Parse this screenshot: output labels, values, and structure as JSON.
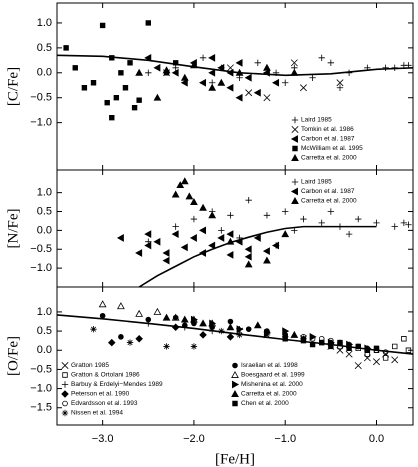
{
  "chart_data": [
    {
      "type": "scatter",
      "ylabel": "[C/Fe]",
      "color": "#000000",
      "legend": "lower right",
      "xlim": [
        -3.5,
        0.4
      ],
      "ylim": [
        -1.95,
        1.4
      ],
      "yticks": [
        {
          "value": 1,
          "label": "1.0"
        },
        {
          "value": 0.5,
          "label": "0.5"
        },
        {
          "value": 0,
          "label": "0.0"
        },
        {
          "value": -0.5,
          "label": "−0.5"
        },
        {
          "value": -1,
          "label": "−1.0"
        }
      ],
      "series": [
        {
          "name": "Laird 1985",
          "marker": "plus",
          "x": [
            -2.2,
            -1.9,
            -1.7,
            -1.5,
            -1.3,
            -1.1,
            -0.9,
            -0.7,
            -0.5,
            -0.3,
            -0.1,
            0.1,
            0.3,
            -1.0,
            -0.6,
            -1.8,
            -2.5,
            -0.4,
            0.2,
            0.35
          ],
          "values": [
            0.1,
            0.3,
            0.1,
            -0.1,
            0.2,
            0.0,
            0.1,
            -0.1,
            0.2,
            0.0,
            0.1,
            0.1,
            0.15,
            -0.2,
            0.3,
            -0.2,
            0.0,
            -0.3,
            0.1,
            0.15
          ]
        },
        {
          "name": "Tomkin et al. 1986",
          "marker": "cross",
          "x": [
            -2.3,
            -1.4,
            -1.2,
            -0.8,
            -0.4,
            -1.6,
            -0.9
          ],
          "values": [
            0.0,
            -0.4,
            -0.5,
            -0.3,
            -0.2,
            0.1,
            0.2
          ]
        },
        {
          "name": "Carbon et al. 1987",
          "marker": "tri-left",
          "x": [
            -2.5,
            -2.4,
            -2.2,
            -2.0,
            -1.9,
            -1.8,
            -1.7,
            -1.6,
            -1.5,
            -1.4,
            -1.3,
            -1.2,
            -1.1,
            -2.1,
            -1.8,
            -1.6,
            -1.5
          ],
          "values": [
            0.3,
            0.1,
            0.0,
            0.2,
            -0.2,
            0.0,
            0.1,
            -0.3,
            0.2,
            -0.1,
            -0.4,
            0.0,
            -0.2,
            -0.2,
            0.3,
            0.0,
            -0.5
          ]
        },
        {
          "name": "McWilliam et al. 1995",
          "marker": "square",
          "x": [
            -3.4,
            -3.3,
            -3.1,
            -3.0,
            -2.95,
            -2.9,
            -2.85,
            -2.8,
            -2.75,
            -2.7,
            -2.6,
            -2.5,
            -2.3,
            -2.2,
            -3.2,
            -2.9,
            -2.65
          ],
          "values": [
            0.5,
            0.1,
            -0.2,
            0.95,
            -0.6,
            0.3,
            -0.5,
            0.0,
            -0.3,
            0.2,
            -0.55,
            1.0,
            0.0,
            0.2,
            -0.3,
            -0.9,
            -0.7
          ]
        },
        {
          "name": "Carretta et al. 2000",
          "marker": "tri-up",
          "x": [
            -2.6,
            -2.4,
            -2.1,
            -2.0,
            -1.8,
            -1.5,
            -1.2,
            -0.9,
            -2.3,
            -1.7
          ],
          "values": [
            0.0,
            -0.5,
            -0.1,
            0.15,
            -0.3,
            0.0,
            0.1,
            0.0,
            0.05,
            -0.2
          ]
        }
      ],
      "curve": {
        "x": [
          -3.5,
          -3.0,
          -2.5,
          -2.0,
          -1.5,
          -1.0,
          -0.5,
          0.0,
          0.4
        ],
        "y": [
          0.35,
          0.33,
          0.25,
          0.12,
          0.0,
          -0.05,
          -0.02,
          0.07,
          0.1
        ]
      }
    },
    {
      "type": "scatter",
      "ylabel": "[N/Fe]",
      "color": "#000000",
      "legend": "upper right",
      "xlim": [
        -3.5,
        0.4
      ],
      "ylim": [
        -1.5,
        1.6
      ],
      "yticks": [
        {
          "value": 1,
          "label": "1.0"
        },
        {
          "value": 0.5,
          "label": "0.5"
        },
        {
          "value": 0,
          "label": "0.0"
        },
        {
          "value": -0.5,
          "label": "−0.5"
        },
        {
          "value": -1,
          "label": "−1.0"
        }
      ],
      "series": [
        {
          "name": "Laird 1985",
          "marker": "plus",
          "x": [
            -2.5,
            -2.2,
            -2.0,
            -1.8,
            -1.6,
            -1.4,
            -1.2,
            -1.0,
            -0.8,
            -0.6,
            -0.4,
            -0.2,
            0.0,
            0.2,
            0.35,
            -1.5,
            -0.9,
            -1.1,
            -0.5,
            -1.7,
            -0.3,
            0.3
          ],
          "values": [
            -0.3,
            0.1,
            0.3,
            0.5,
            0.4,
            0.8,
            0.4,
            0.5,
            0.3,
            0.2,
            0.1,
            0.3,
            0.2,
            0.1,
            0.15,
            -0.2,
            0.0,
            -0.4,
            0.5,
            0.0,
            -0.1,
            0.2
          ]
        },
        {
          "name": "Carbon et al. 1987",
          "marker": "tri-left",
          "x": [
            -2.8,
            -2.6,
            -2.5,
            -2.4,
            -2.3,
            -2.2,
            -2.1,
            -2.0,
            -1.9,
            -1.8,
            -1.7,
            -1.6,
            -1.5,
            -1.4,
            -1.3,
            -1.2,
            -1.1,
            -2.3,
            -1.9,
            -1.6,
            -1.4,
            -2.5
          ],
          "values": [
            -0.2,
            -0.6,
            -0.4,
            -0.3,
            -0.6,
            -0.1,
            -0.45,
            -0.2,
            -0.6,
            -0.4,
            -0.2,
            -0.65,
            -0.3,
            -0.5,
            -0.2,
            -0.55,
            -0.4,
            -0.8,
            0.0,
            -0.1,
            -0.7,
            -0.1
          ]
        },
        {
          "name": "Carretta et al. 2000",
          "marker": "tri-up",
          "x": [
            -2.15,
            -2.1,
            -2.05,
            -2.0,
            -1.9,
            -1.8,
            -1.6,
            -1.4,
            -1.2,
            -1.0,
            -2.2
          ],
          "values": [
            1.2,
            1.3,
            0.9,
            0.75,
            0.6,
            0.4,
            -0.3,
            -0.9,
            -0.8,
            -0.1,
            0.95
          ]
        }
      ],
      "curve": {
        "x": [
          -2.6,
          -2.4,
          -2.2,
          -2.0,
          -1.8,
          -1.6,
          -1.4,
          -1.2,
          -1.0,
          -0.8,
          -0.6,
          -0.4,
          -0.2,
          0.0
        ],
        "y": [
          -1.5,
          -1.2,
          -0.95,
          -0.7,
          -0.5,
          -0.32,
          -0.18,
          -0.05,
          0.05,
          0.1,
          0.1,
          0.1,
          0.1,
          0.1
        ]
      }
    },
    {
      "type": "scatter",
      "ylabel": "[O/Fe]",
      "xlabel": "[Fe/H]",
      "color": "#000000",
      "legend": "lower left",
      "legend_columns": 2,
      "xlim": [
        -3.5,
        0.4
      ],
      "ylim": [
        -1.95,
        1.65
      ],
      "xticks": [
        {
          "value": -3,
          "label": "−3.0"
        },
        {
          "value": -2,
          "label": "−2.0"
        },
        {
          "value": -1,
          "label": "−1.0"
        },
        {
          "value": 0,
          "label": "0.0"
        }
      ],
      "yticks": [
        {
          "value": 1,
          "label": "1.0"
        },
        {
          "value": 0.5,
          "label": "0.5"
        },
        {
          "value": 0,
          "label": "0.0"
        },
        {
          "value": -0.5,
          "label": "−0.5"
        },
        {
          "value": -1,
          "label": "−1.0"
        },
        {
          "value": -1.5,
          "label": "−1.5"
        }
      ],
      "series": [
        {
          "name": "Gratton 1985",
          "marker": "cross",
          "x": [
            -1.5,
            -1.2,
            -0.8,
            -0.5,
            -0.3,
            -0.1,
            0.0,
            0.1,
            0.2,
            -0.4,
            -0.2
          ],
          "values": [
            0.5,
            0.4,
            0.3,
            0.1,
            -0.1,
            -0.2,
            -0.3,
            -0.1,
            -0.25,
            0.0,
            -0.4
          ]
        },
        {
          "name": "Gratton & Ortolani 1986",
          "marker": "square-open",
          "x": [
            -0.6,
            -0.4,
            -0.2,
            0.0,
            0.2,
            0.3,
            0.35,
            -0.1,
            0.1
          ],
          "values": [
            0.2,
            0.1,
            0.05,
            0.0,
            0.1,
            0.3,
            0.0,
            -0.1,
            -0.2
          ]
        },
        {
          "name": "Barbuy & Erdelyi−Mendes 1989",
          "marker": "plus",
          "x": [
            -2.5,
            -2.1,
            -1.8,
            -1.5,
            -1.2,
            -1.0,
            -0.8
          ],
          "values": [
            0.7,
            0.6,
            0.5,
            0.55,
            0.4,
            0.35,
            0.3
          ]
        },
        {
          "name": "Peterson et al. 1990",
          "marker": "diamond",
          "x": [
            -2.9,
            -2.6,
            -2.2,
            -1.9,
            -1.6
          ],
          "values": [
            0.2,
            0.3,
            0.6,
            0.4,
            0.35
          ]
        },
        {
          "name": "Edvardsson et al. 1993",
          "marker": "circle-open",
          "x": [
            -1.0,
            -0.8,
            -0.6,
            -0.5,
            -0.4,
            -0.3,
            -0.2,
            -0.1,
            0.0,
            0.1,
            -0.7
          ],
          "values": [
            0.4,
            0.35,
            0.3,
            0.25,
            0.2,
            0.15,
            0.1,
            0.05,
            0.0,
            -0.05,
            0.3
          ]
        },
        {
          "name": "Nissen et al. 1994",
          "marker": "asterisk",
          "x": [
            -3.1,
            -2.7,
            -2.3,
            -2.0,
            -1.7,
            -1.5
          ],
          "values": [
            0.55,
            0.2,
            0.1,
            0.1,
            0.5,
            0.4
          ]
        },
        {
          "name": "Israelian et al. 1998",
          "marker": "circle",
          "x": [
            -3.0,
            -2.5,
            -2.2,
            -2.0,
            -1.8,
            -1.6,
            -1.4,
            -1.2,
            -1.0,
            -0.8,
            -0.5,
            -2.8,
            -2.1
          ],
          "values": [
            0.9,
            0.8,
            0.85,
            0.7,
            0.6,
            0.75,
            0.55,
            0.5,
            0.4,
            0.3,
            0.2,
            0.35,
            0.65
          ]
        },
        {
          "name": "Boesgaard et al. 1999",
          "marker": "tri-up-open",
          "x": [
            -3.0,
            -2.8,
            -2.6,
            -2.4,
            -2.2,
            -2.0,
            -1.8
          ],
          "values": [
            1.2,
            1.15,
            0.95,
            1.0,
            0.85,
            0.8,
            0.7
          ]
        },
        {
          "name": "Mishenina et al. 2000",
          "marker": "tri-right",
          "x": [
            -2.0,
            -1.8,
            -1.5,
            -1.2,
            -1.0,
            -0.7,
            -0.5,
            -0.3,
            -0.1
          ],
          "values": [
            0.8,
            0.7,
            0.55,
            0.45,
            0.5,
            0.35,
            0.2,
            0.15,
            0.05
          ]
        },
        {
          "name": "Carretta et al. 2000",
          "marker": "tri-up",
          "x": [
            -2.3,
            -2.1,
            -1.9,
            -1.6,
            -1.3,
            -0.9
          ],
          "values": [
            0.85,
            0.8,
            0.7,
            0.6,
            0.65,
            0.4
          ]
        },
        {
          "name": "Chen et al. 2000",
          "marker": "square",
          "x": [
            -1.0,
            -0.8,
            -0.6,
            -0.4,
            -0.2,
            -0.7,
            -0.5,
            -0.3,
            -0.1,
            0.0
          ],
          "values": [
            0.3,
            0.25,
            0.2,
            0.2,
            0.1,
            0.15,
            0.1,
            0.05,
            0.0,
            0.05
          ]
        }
      ],
      "curve": {
        "x": [
          -3.5,
          -3.0,
          -2.5,
          -2.0,
          -1.5,
          -1.0,
          -0.5,
          0.0,
          0.4
        ],
        "y": [
          0.92,
          0.82,
          0.7,
          0.57,
          0.42,
          0.28,
          0.15,
          0.0,
          -0.1
        ]
      }
    }
  ]
}
